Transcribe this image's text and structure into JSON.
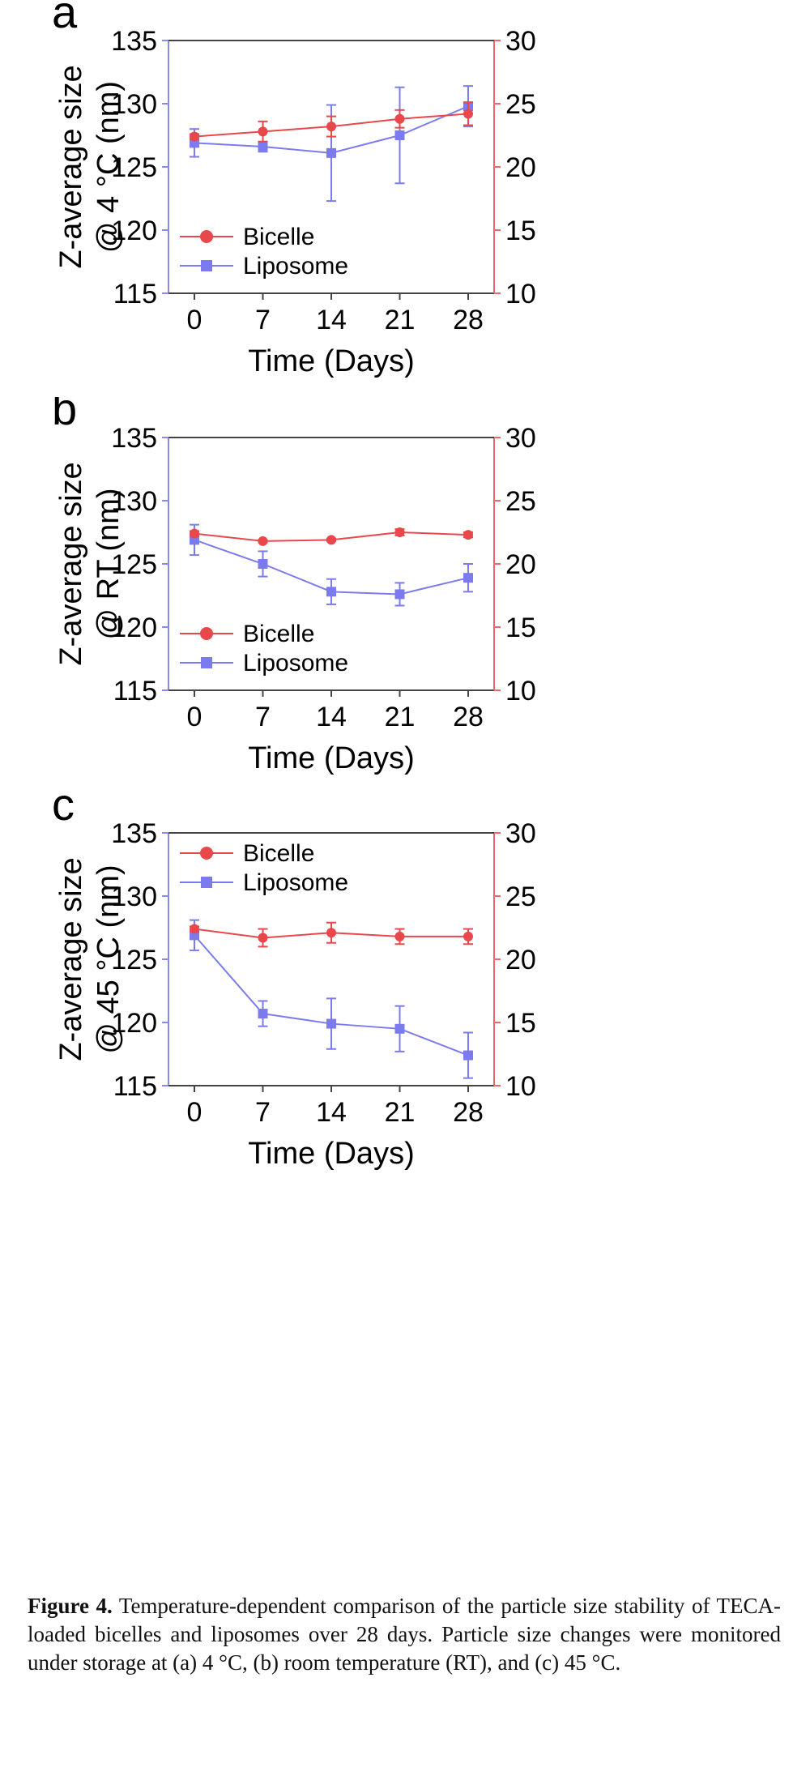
{
  "chart_data": [
    {
      "type": "line",
      "panel_label": "a",
      "xlabel": "Time (Days)",
      "ylabel": [
        "Z-average size",
        "@ 4 °C (nm)"
      ],
      "x": [
        0,
        7,
        14,
        21,
        28
      ],
      "xticks": [
        "0",
        "7",
        "14",
        "21",
        "28"
      ],
      "ylim_left": [
        115,
        135
      ],
      "yticks_left": [
        "115",
        "120",
        "125",
        "130",
        "135"
      ],
      "ylim_right": [
        10,
        30
      ],
      "yticks_right": [
        "10",
        "15",
        "20",
        "25",
        "30"
      ],
      "legend_position": "bottom-left",
      "series": [
        {
          "name": "Bicelle",
          "marker": "circle",
          "color": "#e8474b",
          "values": [
            127.4,
            127.8,
            128.2,
            128.8,
            129.2
          ],
          "errors": [
            0.2,
            0.8,
            0.8,
            0.7,
            0.9
          ]
        },
        {
          "name": "Liposome",
          "marker": "square",
          "color": "#7b7bef",
          "values": [
            126.9,
            126.6,
            126.1,
            127.5,
            129.8
          ],
          "errors": [
            1.1,
            0.4,
            3.8,
            3.8,
            1.6
          ]
        }
      ]
    },
    {
      "type": "line",
      "panel_label": "b",
      "xlabel": "Time (Days)",
      "ylabel": [
        "Z-average size",
        "@ RT (nm)"
      ],
      "x": [
        0,
        7,
        14,
        21,
        28
      ],
      "xticks": [
        "0",
        "7",
        "14",
        "21",
        "28"
      ],
      "ylim_left": [
        115,
        135
      ],
      "yticks_left": [
        "115",
        "120",
        "125",
        "130",
        "135"
      ],
      "ylim_right": [
        10,
        30
      ],
      "yticks_right": [
        "10",
        "15",
        "20",
        "25",
        "30"
      ],
      "legend_position": "bottom-left",
      "series": [
        {
          "name": "Bicelle",
          "marker": "circle",
          "color": "#e8474b",
          "values": [
            127.4,
            126.8,
            126.9,
            127.5,
            127.3
          ],
          "errors": [
            0.2,
            0.1,
            0.1,
            0.25,
            0.2
          ]
        },
        {
          "name": "Liposome",
          "marker": "square",
          "color": "#7b7bef",
          "values": [
            126.9,
            125.0,
            122.8,
            122.6,
            123.9
          ],
          "errors": [
            1.2,
            1.0,
            1.0,
            0.9,
            1.1
          ]
        }
      ]
    },
    {
      "type": "line",
      "panel_label": "c",
      "xlabel": "Time (Days)",
      "ylabel": [
        "Z-average size",
        "@ 45 °C (nm)"
      ],
      "x": [
        0,
        7,
        14,
        21,
        28
      ],
      "xticks": [
        "0",
        "7",
        "14",
        "21",
        "28"
      ],
      "ylim_left": [
        115,
        135
      ],
      "yticks_left": [
        "115",
        "120",
        "125",
        "130",
        "135"
      ],
      "ylim_right": [
        10,
        30
      ],
      "yticks_right": [
        "10",
        "15",
        "20",
        "25",
        "30"
      ],
      "legend_position": "top-left",
      "series": [
        {
          "name": "Bicelle",
          "marker": "circle",
          "color": "#e8474b",
          "values": [
            127.4,
            126.7,
            127.1,
            126.8,
            126.8
          ],
          "errors": [
            0.2,
            0.7,
            0.8,
            0.6,
            0.6
          ]
        },
        {
          "name": "Liposome",
          "marker": "square",
          "color": "#7b7bef",
          "values": [
            126.9,
            120.7,
            119.9,
            119.5,
            117.4
          ],
          "errors": [
            1.2,
            1.0,
            2.0,
            1.8,
            1.8
          ]
        }
      ]
    }
  ],
  "caption": {
    "label": "Figure 4.",
    "text": " Temperature-dependent comparison of the particle size stability of TECA-loaded bicelles and liposomes over 28 days. Particle size changes were monitored under storage at (a) 4 °C, (b) room temperature (RT), and (c) 45 °C."
  }
}
